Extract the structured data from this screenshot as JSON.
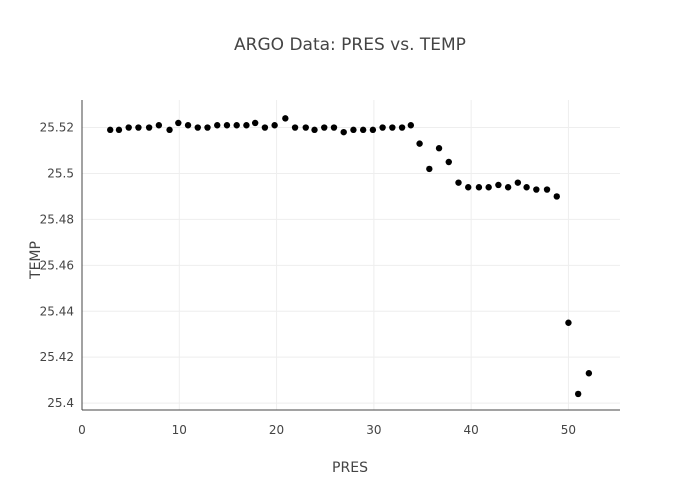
{
  "chart_data": {
    "type": "scatter",
    "title": "ARGO Data: PRES vs. TEMP",
    "xlabel": "PRES",
    "ylabel": "TEMP",
    "xlim": [
      0,
      55.3
    ],
    "ylim": [
      25.397,
      25.532
    ],
    "xticks": [
      0,
      10,
      20,
      30,
      40,
      50
    ],
    "yticks": [
      25.4,
      25.42,
      25.44,
      25.46,
      25.48,
      25.5,
      25.52
    ],
    "xtick_labels": [
      "0",
      "10",
      "20",
      "30",
      "40",
      "50"
    ],
    "ytick_labels": [
      "25.4",
      "25.42",
      "25.44",
      "25.46",
      "25.48",
      "25.5",
      "25.52"
    ],
    "grid": true,
    "marker_color": "#000000",
    "x": [
      2.9,
      3.8,
      4.8,
      5.8,
      6.9,
      7.9,
      9.0,
      9.9,
      10.9,
      11.9,
      12.9,
      13.9,
      14.9,
      15.9,
      16.9,
      17.8,
      18.8,
      19.8,
      20.9,
      21.9,
      23.0,
      23.9,
      24.9,
      25.9,
      26.9,
      27.9,
      28.9,
      29.9,
      30.9,
      31.9,
      32.9,
      33.8,
      34.7,
      35.7,
      36.7,
      37.7,
      38.7,
      39.7,
      40.8,
      41.8,
      42.8,
      43.8,
      44.8,
      45.7,
      46.7,
      47.8,
      48.8,
      50.0,
      51.0,
      52.1
    ],
    "y": [
      25.519,
      25.519,
      25.52,
      25.52,
      25.52,
      25.521,
      25.519,
      25.522,
      25.521,
      25.52,
      25.52,
      25.521,
      25.521,
      25.521,
      25.521,
      25.522,
      25.52,
      25.521,
      25.524,
      25.52,
      25.52,
      25.519,
      25.52,
      25.52,
      25.518,
      25.519,
      25.519,
      25.519,
      25.52,
      25.52,
      25.52,
      25.521,
      25.513,
      25.502,
      25.511,
      25.505,
      25.496,
      25.494,
      25.494,
      25.494,
      25.495,
      25.494,
      25.496,
      25.494,
      25.493,
      25.493,
      25.49,
      25.435,
      25.404,
      25.413
    ]
  }
}
